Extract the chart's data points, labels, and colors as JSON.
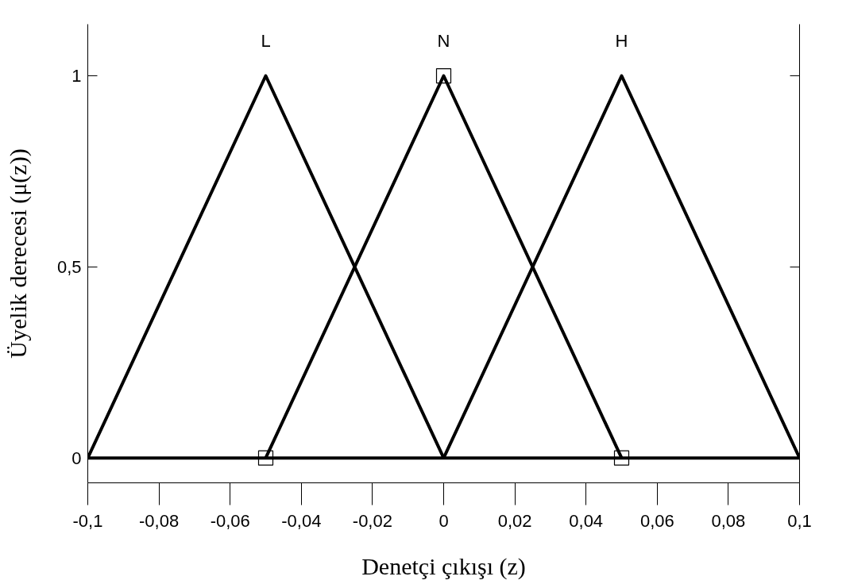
{
  "chart_data": {
    "type": "line",
    "xlabel": "Denetçi çıkışı (z)",
    "ylabel": "Üyelik derecesi (μ(z))",
    "series": [
      {
        "name": "L",
        "color": "#000000",
        "x": [
          -0.1,
          -0.05,
          0
        ],
        "values": [
          0,
          1,
          0
        ]
      },
      {
        "name": "N",
        "color": "#000000",
        "x": [
          -0.05,
          0,
          0.05
        ],
        "values": [
          0,
          1,
          0
        ]
      },
      {
        "name": "H",
        "color": "#000000",
        "x": [
          0,
          0.05,
          0.1
        ],
        "values": [
          0,
          1,
          0
        ]
      },
      {
        "type": "scatter",
        "marker": "square",
        "color": "#000000",
        "x": [
          -0.05,
          0,
          0.05
        ],
        "values": [
          0,
          1,
          0
        ]
      }
    ],
    "ref_lines": [
      {
        "axis": "y",
        "value": 0,
        "color": "#000000"
      }
    ],
    "xlim": [
      -0.1,
      0.1
    ],
    "xticks": [
      {
        "value": -0.1,
        "label": "-0,1"
      },
      {
        "value": -0.08,
        "label": "-0,08"
      },
      {
        "value": -0.06,
        "label": "-0,06"
      },
      {
        "value": -0.04,
        "label": "-0,04"
      },
      {
        "value": -0.02,
        "label": "-0,02"
      },
      0,
      {
        "value": 0.02,
        "label": "0,02"
      },
      {
        "value": 0.04,
        "label": "0,04"
      },
      {
        "value": 0.06,
        "label": "0,06"
      },
      {
        "value": 0.08,
        "label": "0,08"
      },
      {
        "value": 0.1,
        "label": "0,1"
      }
    ],
    "ylim": [
      -0.065,
      1.135
    ],
    "yticks": [
      0,
      {
        "value": 0.5,
        "label": "0,5"
      },
      1
    ],
    "grid": false,
    "marker": "none",
    "line_style": "solid"
  }
}
